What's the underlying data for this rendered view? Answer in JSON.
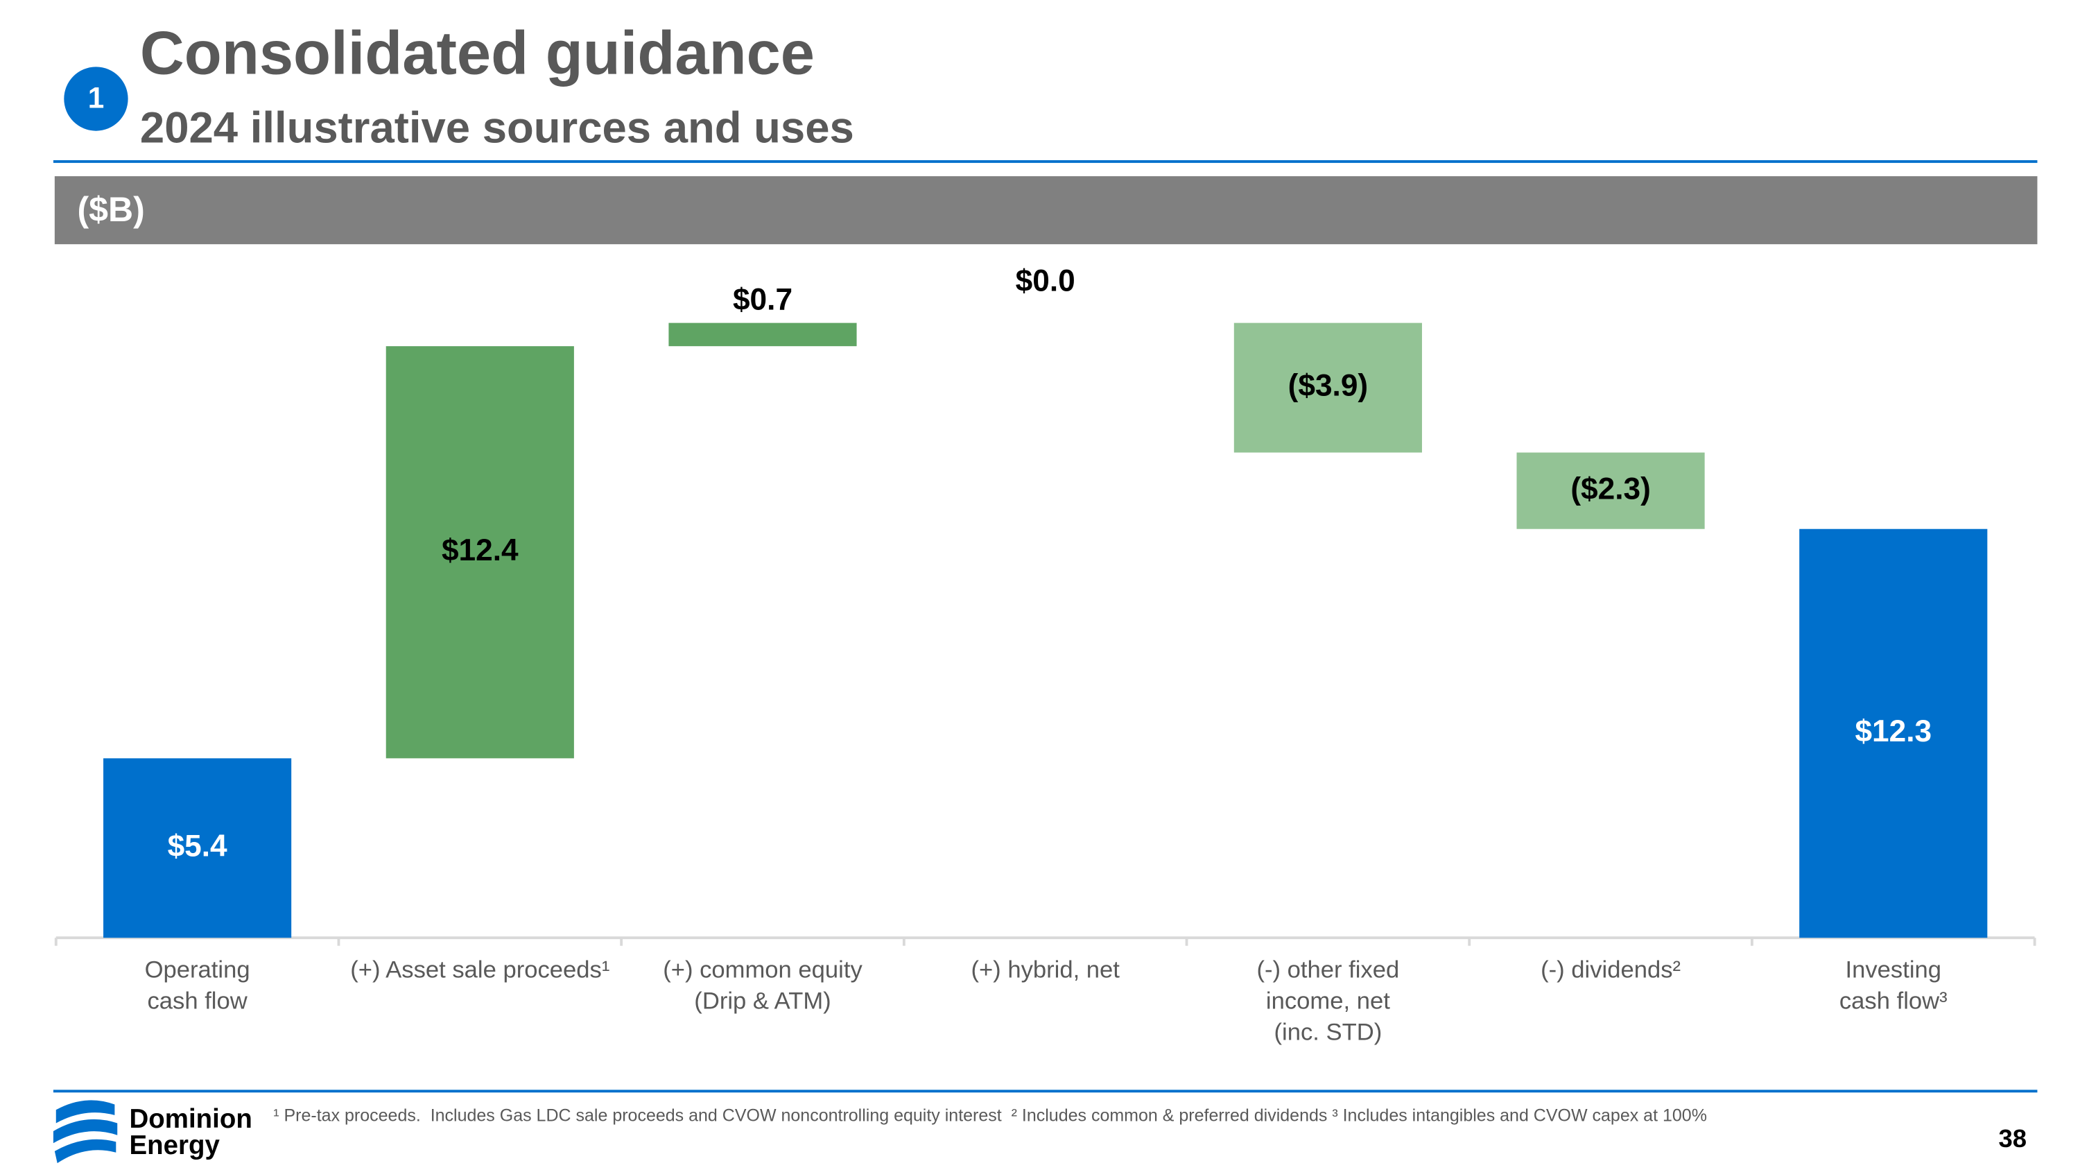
{
  "page_number_badge": "1",
  "header": {
    "title": "Consolidated guidance",
    "subtitle": "2024 illustrative sources and uses",
    "unit_bar": "($B)"
  },
  "chart_data": {
    "type": "waterfall",
    "categories": [
      [
        "Operating",
        "cash flow"
      ],
      [
        "(+) Asset sale proceeds¹"
      ],
      [
        "(+) common equity",
        "(Drip & ATM)"
      ],
      [
        "(+) hybrid, net"
      ],
      [
        "(-) other fixed",
        "income, net",
        "(inc. STD)"
      ],
      [
        "(-) dividends²"
      ],
      [
        "Investing",
        "cash flow³"
      ]
    ],
    "values": [
      5.4,
      12.4,
      0.7,
      0.0,
      -3.9,
      -2.3,
      12.3
    ],
    "value_labels": [
      "$5.4",
      "$12.4",
      "$0.7",
      "$0.0",
      "($3.9)",
      "($2.3)",
      "$12.3"
    ],
    "measure": [
      "absolute",
      "relative",
      "relative",
      "relative",
      "relative",
      "relative",
      "total"
    ],
    "colors": {
      "total": "#0070cc",
      "increase": "#5fa463",
      "decrease": "#93c395"
    }
  },
  "footer": {
    "logo": [
      "Dominion",
      "Energy"
    ],
    "footnote": "¹ Pre-tax proceeds.  Includes Gas LDC sale proceeds and CVOW noncontrolling equity interest  ² Includes common & preferred dividends ³ Includes intangibles and CVOW capex at 100%",
    "page": "38"
  }
}
